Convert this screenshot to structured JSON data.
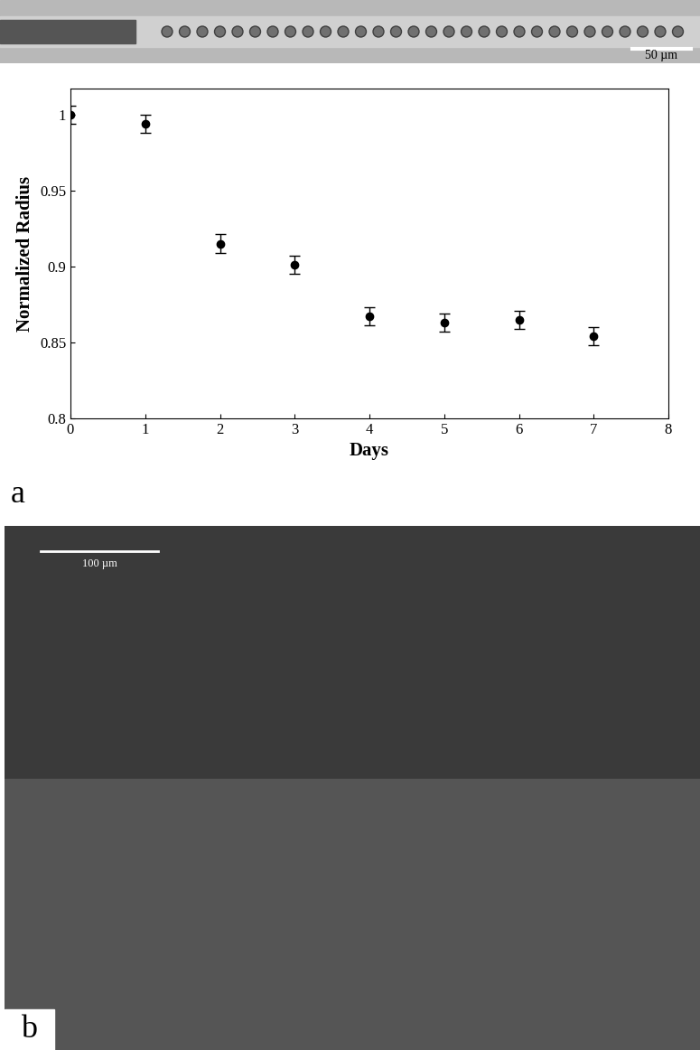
{
  "chart_data": {
    "type": "scatter",
    "x_label": "Days",
    "y_label": "Normalized Radius",
    "x": [
      0,
      1,
      2,
      3,
      4,
      5,
      6,
      7
    ],
    "values": [
      1.0,
      0.994,
      0.915,
      0.901,
      0.867,
      0.863,
      0.865,
      0.854
    ],
    "errors": [
      0.006,
      0.006,
      0.006,
      0.006,
      0.006,
      0.006,
      0.006,
      0.006
    ],
    "color": "#000000",
    "marker": "o",
    "xlim": [
      0,
      8
    ],
    "xticks": [
      0,
      1,
      2,
      3,
      4,
      5,
      6,
      7,
      8
    ],
    "ylim": [
      0.8,
      1.017
    ],
    "yticks": [
      0.8,
      0.85,
      0.9,
      0.95,
      1
    ],
    "annotations": [
      "50 µm",
      "a",
      "100 µm",
      "b"
    ]
  }
}
